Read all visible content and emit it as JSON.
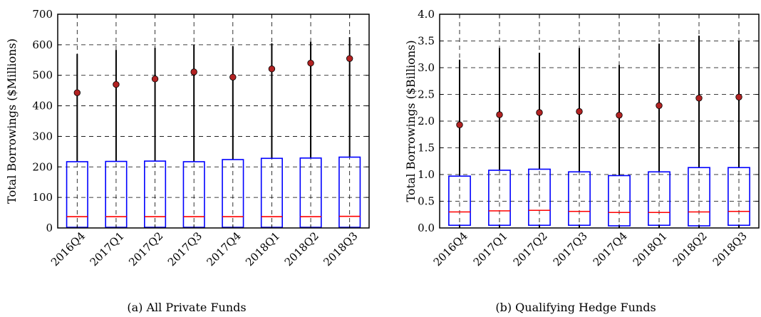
{
  "chart_data": [
    {
      "type": "box",
      "caption": "(a)  All Private Funds",
      "ylabel": "Total Borrowings ($Millions)",
      "ylim": [
        0,
        700
      ],
      "yticks": [
        "0",
        "100",
        "200",
        "300",
        "400",
        "500",
        "600",
        "700"
      ],
      "categories": [
        "2016Q4",
        "2017Q1",
        "2017Q2",
        "2017Q3",
        "2017Q4",
        "2018Q1",
        "2018Q2",
        "2018Q3"
      ],
      "q1": [
        2,
        2,
        2,
        2,
        2,
        2,
        2,
        2
      ],
      "median": [
        37,
        37,
        37,
        37,
        37,
        37,
        37,
        38
      ],
      "q3": [
        217,
        218,
        219,
        217,
        224,
        228,
        229,
        232
      ],
      "whisker_low": [
        0,
        0,
        0,
        0,
        0,
        0,
        0,
        0
      ],
      "whisker_high": [
        570,
        583,
        590,
        600,
        595,
        605,
        610,
        625
      ],
      "mean": [
        443,
        470,
        488,
        511,
        494,
        521,
        540,
        555
      ],
      "grid": true,
      "colors": {
        "box": "#0000ff",
        "median": "#ff0000",
        "whisker": "#000000",
        "mean_fill": "#b22222",
        "grid": "#000000"
      }
    },
    {
      "type": "box",
      "caption": "(b)  Qualifying Hedge Funds",
      "ylabel": "Total Borrowings ($Billions)",
      "ylim": [
        0,
        4.0
      ],
      "yticks": [
        "0.0",
        "0.5",
        "1.0",
        "1.5",
        "2.0",
        "2.5",
        "3.0",
        "3.5",
        "4.0"
      ],
      "categories": [
        "2016Q4",
        "2017Q1",
        "2017Q2",
        "2017Q3",
        "2017Q4",
        "2018Q1",
        "2018Q2",
        "2018Q3"
      ],
      "q1": [
        0.05,
        0.05,
        0.05,
        0.05,
        0.04,
        0.05,
        0.04,
        0.05
      ],
      "median": [
        0.3,
        0.32,
        0.33,
        0.31,
        0.29,
        0.29,
        0.3,
        0.31
      ],
      "q3": [
        0.97,
        1.08,
        1.1,
        1.05,
        0.98,
        1.05,
        1.13,
        1.13
      ],
      "whisker_low": [
        0,
        0,
        0,
        0,
        0,
        0,
        0,
        0
      ],
      "whisker_high": [
        3.15,
        3.37,
        3.28,
        3.37,
        3.05,
        3.45,
        3.6,
        3.5
      ],
      "mean": [
        1.93,
        2.12,
        2.16,
        2.18,
        2.11,
        2.29,
        2.43,
        2.45
      ],
      "grid": true,
      "colors": {
        "box": "#0000ff",
        "median": "#ff0000",
        "whisker": "#000000",
        "mean_fill": "#b22222",
        "grid": "#000000"
      }
    }
  ]
}
